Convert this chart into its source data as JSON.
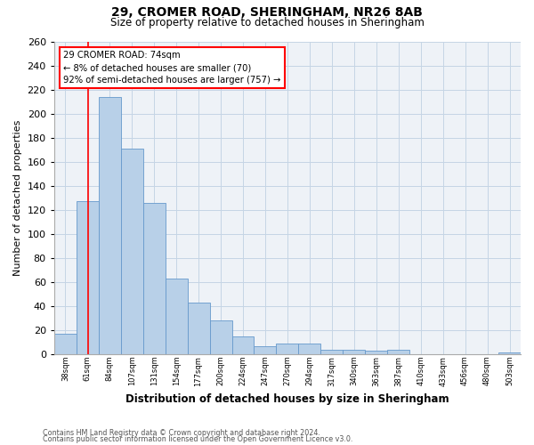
{
  "title1": "29, CROMER ROAD, SHERINGHAM, NR26 8AB",
  "title2": "Size of property relative to detached houses in Sheringham",
  "xlabel": "Distribution of detached houses by size in Sheringham",
  "ylabel": "Number of detached properties",
  "bar_labels": [
    "38sqm",
    "61sqm",
    "84sqm",
    "107sqm",
    "131sqm",
    "154sqm",
    "177sqm",
    "200sqm",
    "224sqm",
    "247sqm",
    "270sqm",
    "294sqm",
    "317sqm",
    "340sqm",
    "363sqm",
    "387sqm",
    "410sqm",
    "433sqm",
    "456sqm",
    "480sqm",
    "503sqm"
  ],
  "bar_values": [
    17,
    127,
    214,
    171,
    126,
    63,
    43,
    28,
    15,
    7,
    9,
    9,
    4,
    4,
    3,
    4,
    0,
    0,
    0,
    0,
    2
  ],
  "bar_color": "#b8d0e8",
  "bar_edge_color": "#6699cc",
  "ylim": [
    0,
    260
  ],
  "yticks": [
    0,
    20,
    40,
    60,
    80,
    100,
    120,
    140,
    160,
    180,
    200,
    220,
    240,
    260
  ],
  "redline_x": 1.52,
  "annotation_title": "29 CROMER ROAD: 74sqm",
  "annotation_line1": "← 8% of detached houses are smaller (70)",
  "annotation_line2": "92% of semi-detached houses are larger (757) →",
  "footer1": "Contains HM Land Registry data © Crown copyright and database right 2024.",
  "footer2": "Contains public sector information licensed under the Open Government Licence v3.0.",
  "bg_color": "#eef2f7",
  "grid_color": "#c5d5e5"
}
